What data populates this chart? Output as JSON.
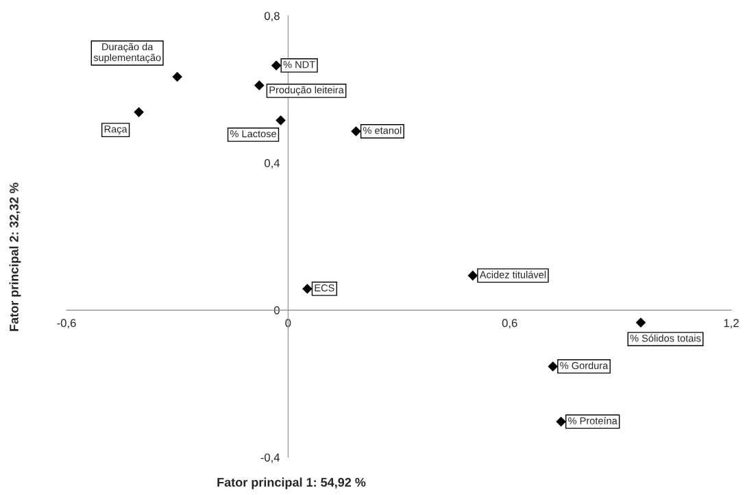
{
  "chart_data": {
    "type": "scatter",
    "xlabel": "Fator principal 1: 54,92 %",
    "ylabel": "Fator principal 2: 32,32 %",
    "xlim": [
      -0.6,
      1.2
    ],
    "ylim": [
      -0.4,
      0.8
    ],
    "xticks": [
      {
        "value": -0.6,
        "label": "-0,6"
      },
      0,
      {
        "value": 0.6,
        "label": "0,6"
      },
      {
        "value": 1.2,
        "label": "1,2"
      }
    ],
    "yticks": [
      {
        "value": -0.4,
        "label": "-0,4"
      },
      0,
      {
        "value": 0.4,
        "label": "0,4"
      },
      {
        "value": 0.8,
        "label": "0,8"
      }
    ],
    "marker": "diamond",
    "grid": false,
    "series": [
      {
        "name": "Duração da\nsuplementação",
        "color": "#000000",
        "x": [
          -0.3
        ],
        "values": [
          0.634
        ]
      },
      {
        "name": "Raça",
        "color": "#000000",
        "x": [
          -0.404
        ],
        "values": [
          0.538
        ]
      },
      {
        "name": "% NDT",
        "color": "#000000",
        "x": [
          -0.032
        ],
        "values": [
          0.665
        ]
      },
      {
        "name": "Produção leiteira",
        "color": "#000000",
        "x": [
          -0.078
        ],
        "values": [
          0.611
        ]
      },
      {
        "name": "% Lactose",
        "color": "#000000",
        "x": [
          -0.02
        ],
        "values": [
          0.516
        ]
      },
      {
        "name": "% etanol",
        "color": "#000000",
        "x": [
          0.184
        ],
        "values": [
          0.486
        ]
      },
      {
        "name": "ECS",
        "color": "#000000",
        "x": [
          0.052
        ],
        "values": [
          0.058
        ]
      },
      {
        "name": "Acidez titulável",
        "color": "#000000",
        "x": [
          0.5
        ],
        "values": [
          0.094
        ]
      },
      {
        "name": "% Sólidos totais",
        "color": "#000000",
        "x": [
          0.955
        ],
        "values": [
          -0.034
        ]
      },
      {
        "name": "% Gordura",
        "color": "#000000",
        "x": [
          0.717
        ],
        "values": [
          -0.153
        ]
      },
      {
        "name": "% Proteína",
        "color": "#000000",
        "x": [
          0.739
        ],
        "values": [
          -0.303
        ]
      }
    ]
  }
}
